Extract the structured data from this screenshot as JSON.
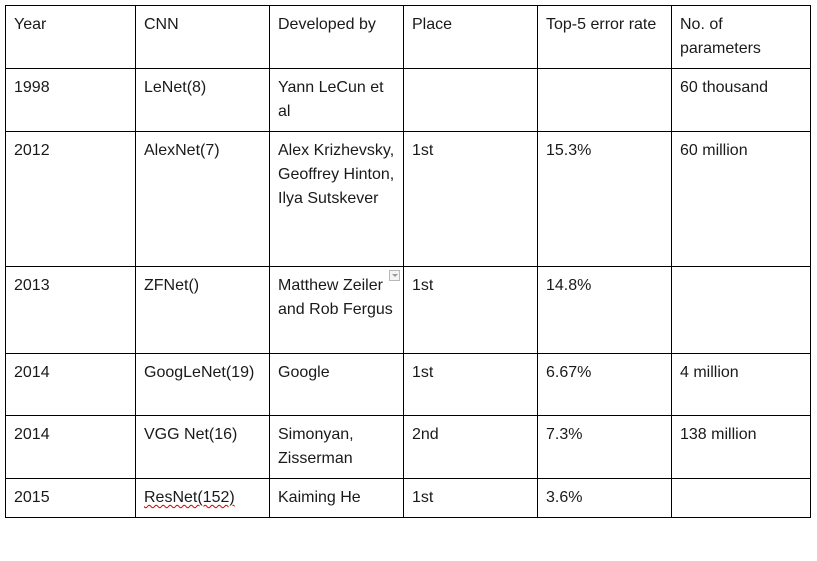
{
  "table": {
    "headers": [
      "Year",
      "CNN",
      "Developed by",
      "Place",
      "Top-5 error rate",
      "No. of parameters"
    ],
    "rows": [
      [
        "1998",
        "LeNet(8)",
        "Yann LeCun et al",
        "",
        "",
        "60 thousand"
      ],
      [
        "2012",
        "AlexNet(7)",
        "Alex Krizhevsky, Geoffrey Hinton, Ilya Sutskever",
        "1st",
        "15.3%",
        "60 million"
      ],
      [
        "2013",
        "ZFNet()",
        "Matthew Zeiler and Rob Fergus",
        "1st",
        "14.8%",
        ""
      ],
      [
        "2014",
        "GoogLeNet(19)",
        "Google",
        "1st",
        "6.67%",
        "4 million"
      ],
      [
        "2014",
        "VGG Net(16)",
        "Simonyan, Zisserman",
        "2nd",
        "7.3%",
        "138 million"
      ],
      [
        "2015",
        "ResNet(152)",
        "Kaiming He",
        "1st",
        "3.6%",
        ""
      ]
    ]
  },
  "icons": {
    "cell_dropdown": "chevron-down-icon"
  },
  "colors": {
    "border": "#000000",
    "text": "#1a1a1a",
    "spellcheck_underline": "#d00000"
  }
}
